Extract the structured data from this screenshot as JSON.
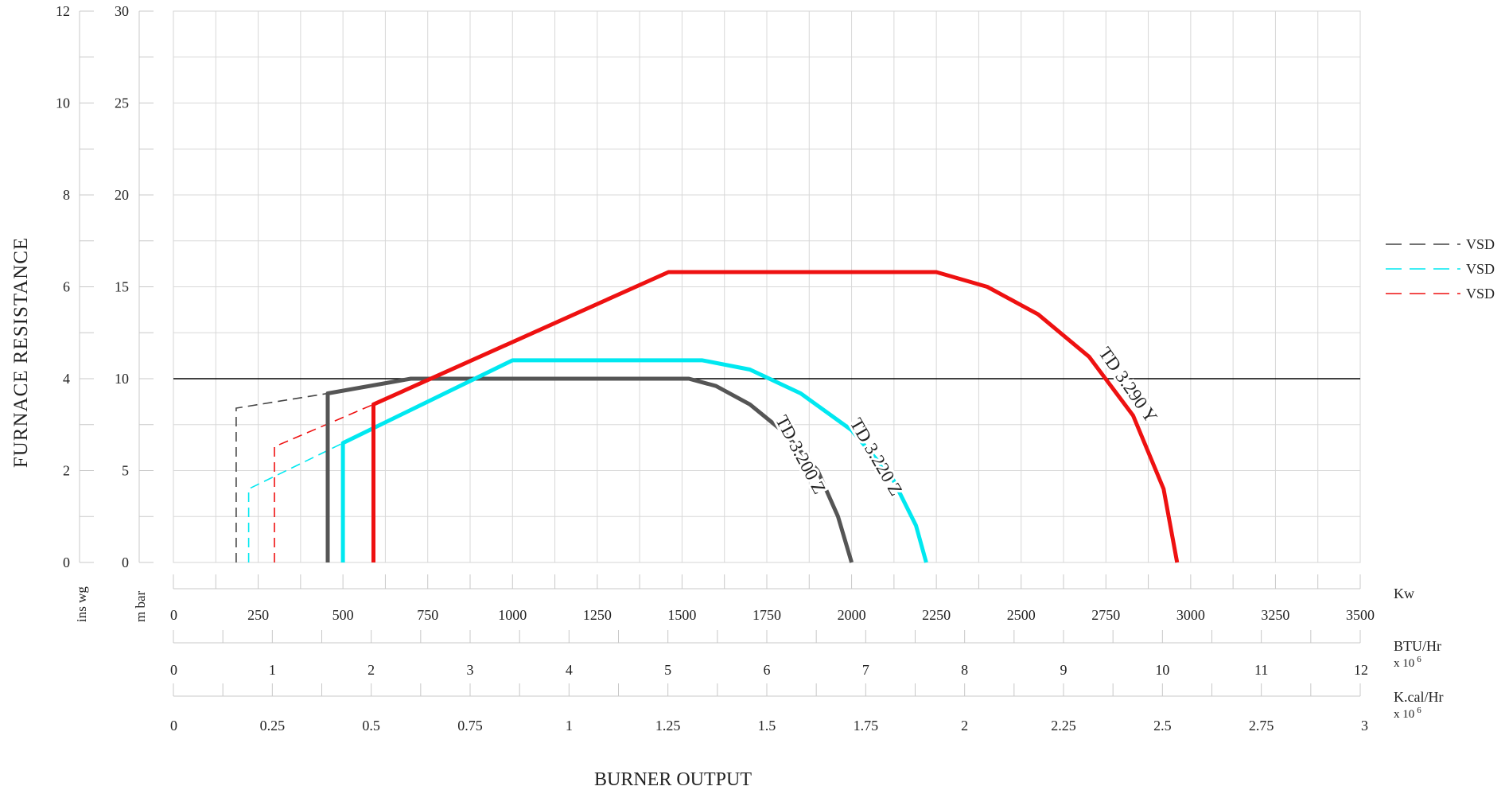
{
  "chart_data": {
    "type": "line",
    "title": "",
    "xlabel": "BURNER OUTPUT",
    "ylabel": "FURNACE RESISTANCE",
    "x_unit": "Kw",
    "xlim": [
      0,
      3500
    ],
    "ylim": [
      0,
      30
    ],
    "x_ticks": [
      "0",
      "250",
      "500",
      "750",
      "1000",
      "1250",
      "1500",
      "1750",
      "2000",
      "2250",
      "2500",
      "2750",
      "3000",
      "3250",
      "3500"
    ],
    "y_unit_mbar": "m bar",
    "y_ticks_mbar": [
      "0",
      "5",
      "10",
      "15",
      "20",
      "25",
      "30"
    ],
    "y_unit_inswg": "ins wg",
    "y_ticks_inswg": [
      "0",
      "2",
      "4",
      "6",
      "8",
      "10",
      "12"
    ],
    "secondary_x_axes": [
      {
        "unit": "BTU/Hr",
        "multiplier": "x 10",
        "exponent": "6",
        "max": 12,
        "ticks": [
          "0",
          "1",
          "2",
          "3",
          "4",
          "5",
          "6",
          "7",
          "8",
          "9",
          "10",
          "11",
          "12"
        ]
      },
      {
        "unit": "K.cal/Hr",
        "multiplier": "x 10",
        "exponent": "6",
        "max": 3,
        "ticks": [
          "0",
          "0.25",
          "0.5",
          "0.75",
          "1",
          "1.25",
          "1.5",
          "1.75",
          "2",
          "2.25",
          "2.5",
          "2.75",
          "3"
        ]
      }
    ],
    "reference_line": {
      "y": 10,
      "color": "#000000"
    },
    "series": [
      {
        "name": "TD 3.200 Z",
        "color": "#555555",
        "points": [
          [
            455,
            0
          ],
          [
            455,
            9.2
          ],
          [
            700,
            10
          ],
          [
            1520,
            10
          ],
          [
            1600,
            9.6
          ],
          [
            1700,
            8.6
          ],
          [
            1800,
            7.1
          ],
          [
            1900,
            5.0
          ],
          [
            1960,
            2.5
          ],
          [
            2000,
            0
          ]
        ]
      },
      {
        "name": "TD 3.220 Z",
        "color": "#00e8f0",
        "points": [
          [
            500,
            0
          ],
          [
            500,
            6.5
          ],
          [
            1000,
            11
          ],
          [
            1560,
            11
          ],
          [
            1700,
            10.5
          ],
          [
            1850,
            9.2
          ],
          [
            2000,
            7.2
          ],
          [
            2120,
            4.6
          ],
          [
            2190,
            2.0
          ],
          [
            2220,
            0
          ]
        ]
      },
      {
        "name": "TD 3.290 Y",
        "color": "#ee1111",
        "points": [
          [
            590,
            0
          ],
          [
            590,
            8.6
          ],
          [
            1460,
            15.8
          ],
          [
            2250,
            15.8
          ],
          [
            2400,
            15.0
          ],
          [
            2550,
            13.5
          ],
          [
            2700,
            11.2
          ],
          [
            2830,
            8.0
          ],
          [
            2920,
            4.0
          ],
          [
            2960,
            0
          ]
        ]
      }
    ],
    "vsd_series": [
      {
        "label": "VSD",
        "color": "#444444",
        "points": [
          [
            185,
            0
          ],
          [
            185,
            8.4
          ],
          [
            455,
            9.2
          ]
        ]
      },
      {
        "label": "VSD",
        "color": "#00e8f0",
        "points": [
          [
            222,
            0
          ],
          [
            222,
            4.0
          ],
          [
            500,
            6.5
          ]
        ]
      },
      {
        "label": "VSD",
        "color": "#ee1111",
        "points": [
          [
            298,
            0
          ],
          [
            298,
            6.3
          ],
          [
            590,
            8.6
          ]
        ]
      }
    ],
    "legend": "right",
    "grid": true
  }
}
